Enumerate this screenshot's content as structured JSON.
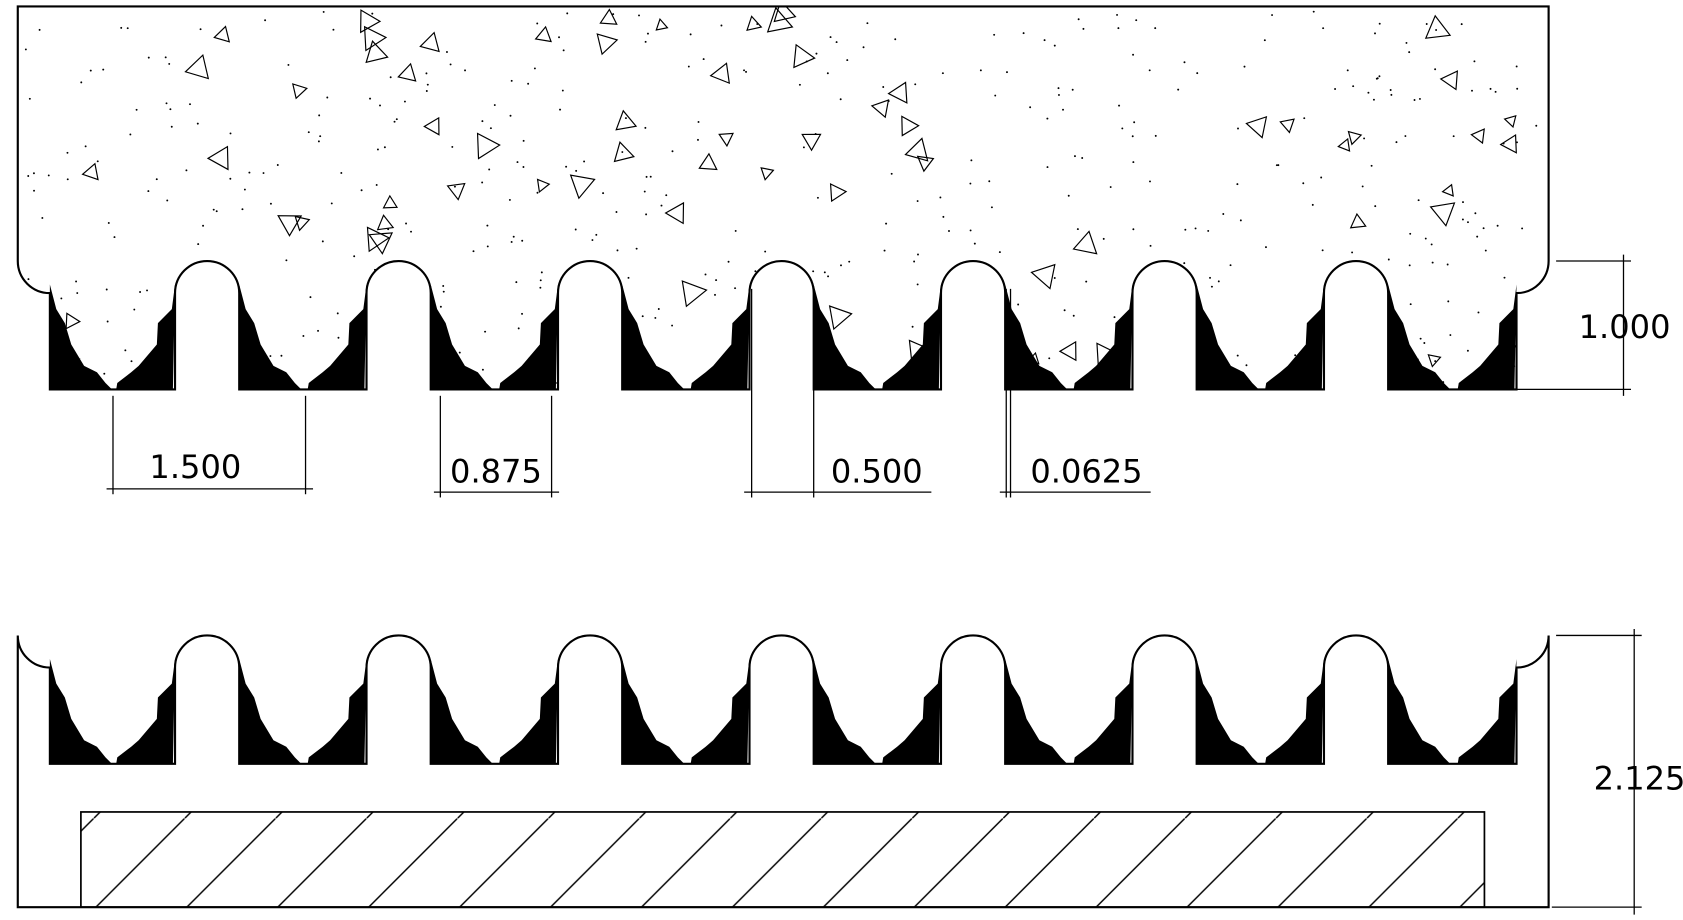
{
  "dimensions": [
    "1.500",
    "0.875",
    "0.500",
    "0.0625",
    "1.000",
    "2.125"
  ]
}
